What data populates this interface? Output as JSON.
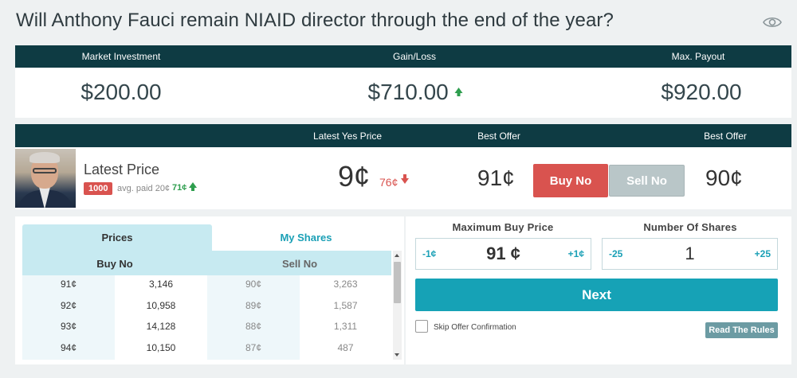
{
  "page": {
    "title": "Will Anthony Fauci remain NIAID director through the end of the year?"
  },
  "icons": {
    "watch": "eye-icon"
  },
  "summary": {
    "investment_label": "Market Investment",
    "investment_value": "$200.00",
    "gainloss_label": "Gain/Loss",
    "gainloss_value": "$710.00",
    "gainloss_direction": "up",
    "payout_label": "Max. Payout",
    "payout_value": "$920.00"
  },
  "market": {
    "header": {
      "latest_yes": "Latest Yes Price",
      "best_offer_left": "Best Offer",
      "best_offer_right": "Best Offer"
    },
    "latest_label": "Latest Price",
    "shares_badge": "1000",
    "avg_paid": "avg. paid 20¢",
    "avg_gain": "71¢",
    "yes_price": "9¢",
    "yes_change": "76¢",
    "best_offer_no_buy": "91¢",
    "buy_no_label": "Buy No",
    "sell_no_label": "Sell No",
    "best_offer_no_sell": "90¢"
  },
  "orderbook": {
    "tabs": [
      "Prices",
      "My Shares"
    ],
    "active_tab": "Prices",
    "buy_header": "Buy No",
    "sell_header": "Sell No",
    "rows": [
      {
        "buy_price": "91¢",
        "buy_qty": "3,146",
        "sell_price": "90¢",
        "sell_qty": "3,263"
      },
      {
        "buy_price": "92¢",
        "buy_qty": "10,958",
        "sell_price": "89¢",
        "sell_qty": "1,587"
      },
      {
        "buy_price": "93¢",
        "buy_qty": "14,128",
        "sell_price": "88¢",
        "sell_qty": "1,311"
      },
      {
        "buy_price": "94¢",
        "buy_qty": "10,150",
        "sell_price": "87¢",
        "sell_qty": "487"
      }
    ]
  },
  "order": {
    "max_price_label": "Maximum Buy Price",
    "price_dec": "-1¢",
    "price_value": "91 ¢",
    "price_inc": "+1¢",
    "shares_label": "Number Of Shares",
    "shares_dec": "-25",
    "shares_value": "1",
    "shares_inc": "+25",
    "next_label": "Next",
    "skip_label": "Skip Offer Confirmation",
    "skip_checked": false,
    "rules_label": "Read The Rules"
  },
  "colors": {
    "header_bg": "#0e3b43",
    "accent": "#16a2b6",
    "buy_no": "#d9534f",
    "gain": "#2e9e4e",
    "tab_bg": "#c7eaf1"
  }
}
